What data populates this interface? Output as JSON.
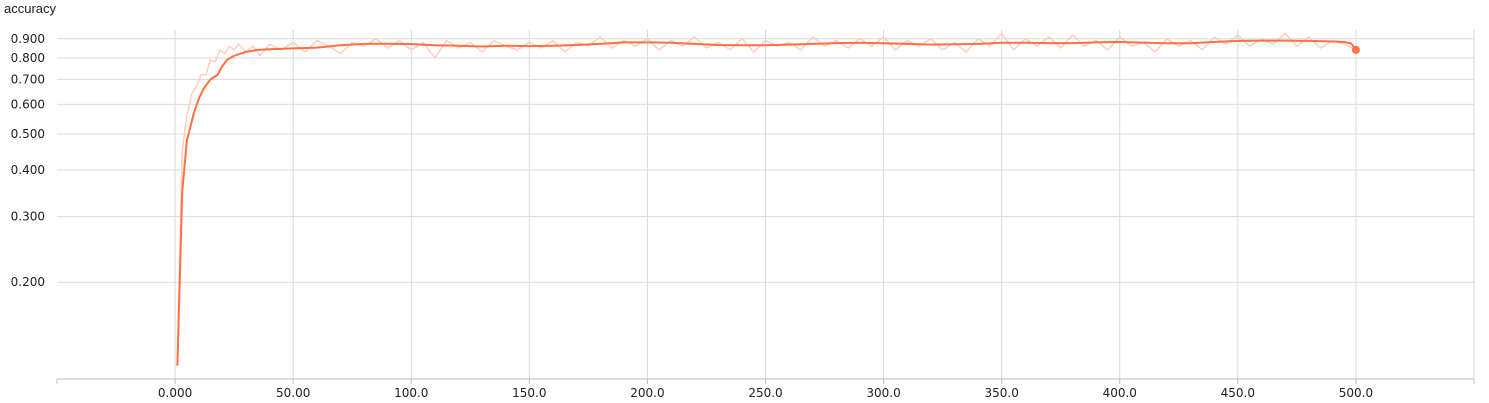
{
  "chart_data": {
    "type": "line",
    "title": "accuracy",
    "xlabel": "",
    "ylabel": "",
    "xlim": [
      -50,
      550
    ],
    "ylim": [
      0.11,
      0.95
    ],
    "x_ticks": [
      0,
      50,
      100,
      150,
      200,
      250,
      300,
      350,
      400,
      450,
      500
    ],
    "x_tick_labels": [
      "0.000",
      "50.00",
      "100.0",
      "150.0",
      "200.0",
      "250.0",
      "300.0",
      "350.0",
      "400.0",
      "450.0",
      "500.0"
    ],
    "y_ticks": [
      0.2,
      0.3,
      0.4,
      0.5,
      0.6,
      0.7,
      0.8,
      0.9
    ],
    "y_tick_labels": [
      "0.200",
      "0.300",
      "0.400",
      "0.500",
      "0.600",
      "0.700",
      "0.800",
      "0.900"
    ],
    "grid": true,
    "colors": {
      "smoothed": "#ff7043",
      "raw": "#ffcdbd"
    },
    "series": [
      {
        "role": "smoothed",
        "x": [
          1,
          3,
          5,
          8,
          10,
          12,
          15,
          18,
          20,
          22,
          25,
          30,
          35,
          40,
          50,
          60,
          70,
          80,
          90,
          100,
          110,
          120,
          130,
          140,
          150,
          160,
          170,
          180,
          190,
          200,
          210,
          220,
          230,
          240,
          250,
          260,
          270,
          280,
          290,
          300,
          310,
          320,
          330,
          340,
          350,
          360,
          370,
          380,
          390,
          400,
          410,
          420,
          430,
          440,
          450,
          460,
          470,
          480,
          490,
          495,
          498,
          500
        ],
        "y": [
          0.12,
          0.35,
          0.48,
          0.57,
          0.62,
          0.66,
          0.7,
          0.72,
          0.76,
          0.79,
          0.81,
          0.83,
          0.84,
          0.843,
          0.848,
          0.852,
          0.865,
          0.872,
          0.873,
          0.871,
          0.865,
          0.862,
          0.858,
          0.862,
          0.86,
          0.862,
          0.866,
          0.872,
          0.88,
          0.88,
          0.878,
          0.872,
          0.866,
          0.865,
          0.865,
          0.868,
          0.872,
          0.876,
          0.878,
          0.875,
          0.872,
          0.868,
          0.87,
          0.872,
          0.878,
          0.878,
          0.876,
          0.876,
          0.88,
          0.882,
          0.879,
          0.875,
          0.875,
          0.882,
          0.888,
          0.89,
          0.89,
          0.888,
          0.885,
          0.882,
          0.874,
          0.84
        ]
      },
      {
        "role": "raw",
        "x": [
          1,
          3,
          5,
          7,
          9,
          11,
          13,
          15,
          17,
          19,
          21,
          23,
          25,
          27,
          30,
          33,
          36,
          40,
          45,
          50,
          55,
          60,
          65,
          70,
          75,
          80,
          85,
          90,
          95,
          100,
          105,
          110,
          115,
          120,
          125,
          130,
          135,
          140,
          145,
          150,
          155,
          160,
          165,
          170,
          175,
          180,
          185,
          190,
          195,
          200,
          205,
          210,
          215,
          220,
          225,
          230,
          235,
          240,
          245,
          250,
          255,
          260,
          265,
          270,
          275,
          280,
          285,
          290,
          295,
          300,
          305,
          310,
          315,
          320,
          325,
          330,
          335,
          340,
          345,
          350,
          355,
          360,
          365,
          370,
          375,
          380,
          385,
          390,
          395,
          400,
          405,
          410,
          415,
          420,
          425,
          430,
          435,
          440,
          445,
          450,
          455,
          460,
          465,
          470,
          475,
          480,
          485,
          490,
          495,
          500
        ],
        "y": [
          0.12,
          0.45,
          0.56,
          0.64,
          0.67,
          0.72,
          0.72,
          0.79,
          0.78,
          0.84,
          0.82,
          0.86,
          0.84,
          0.87,
          0.83,
          0.86,
          0.81,
          0.87,
          0.84,
          0.88,
          0.83,
          0.89,
          0.86,
          0.82,
          0.88,
          0.86,
          0.9,
          0.85,
          0.89,
          0.84,
          0.88,
          0.8,
          0.89,
          0.85,
          0.88,
          0.83,
          0.89,
          0.86,
          0.84,
          0.88,
          0.85,
          0.89,
          0.83,
          0.88,
          0.86,
          0.91,
          0.85,
          0.89,
          0.86,
          0.9,
          0.84,
          0.89,
          0.86,
          0.91,
          0.85,
          0.88,
          0.84,
          0.9,
          0.83,
          0.89,
          0.86,
          0.88,
          0.84,
          0.91,
          0.86,
          0.89,
          0.85,
          0.9,
          0.86,
          0.91,
          0.84,
          0.89,
          0.86,
          0.9,
          0.84,
          0.88,
          0.83,
          0.9,
          0.86,
          0.93,
          0.84,
          0.9,
          0.86,
          0.91,
          0.85,
          0.92,
          0.86,
          0.89,
          0.84,
          0.91,
          0.86,
          0.88,
          0.83,
          0.9,
          0.86,
          0.89,
          0.84,
          0.91,
          0.87,
          0.92,
          0.86,
          0.9,
          0.87,
          0.93,
          0.86,
          0.91,
          0.85,
          0.89,
          0.87,
          0.84
        ]
      }
    ],
    "last_point": {
      "x": 500,
      "y": 0.84
    }
  }
}
